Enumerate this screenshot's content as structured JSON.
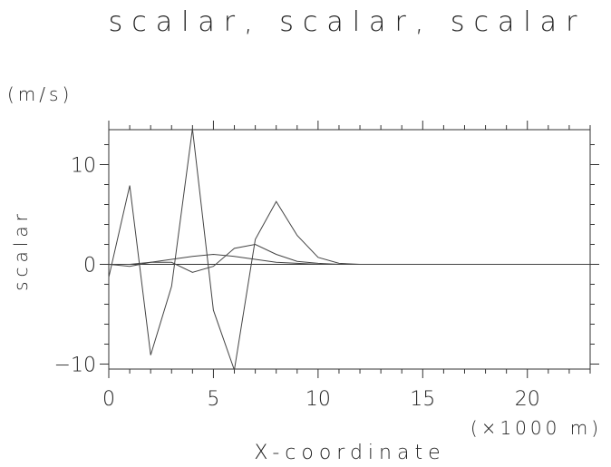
{
  "chart_data": {
    "type": "line",
    "title": "scalar, scalar, scalar",
    "xlabel": "X-coordinate",
    "xunit": "(×1000 m)",
    "ylabel": "scalar",
    "yunit": "(m/s)",
    "xlim": [
      0,
      23
    ],
    "ylim": [
      -10.5,
      13.5
    ],
    "x_ticks": [
      0,
      5,
      10,
      15,
      20
    ],
    "y_ticks": [
      -10,
      0,
      10
    ],
    "grid": false,
    "series": [
      {
        "x": [
          0,
          1,
          2,
          3,
          4,
          5,
          6,
          7,
          8,
          9,
          10,
          11,
          12,
          13,
          14,
          15,
          16,
          17,
          18,
          19,
          20,
          21,
          22,
          23
        ],
        "values": [
          -1.3,
          7.9,
          -9.1,
          -2.2,
          13.6,
          -4.6,
          -10.6,
          2.5,
          6.3,
          2.9,
          0.7,
          0.1,
          0,
          0,
          0,
          0,
          0,
          0,
          0,
          0,
          0,
          0,
          0,
          0
        ]
      },
      {
        "x": [
          0,
          1,
          2,
          3,
          4,
          5,
          6,
          7,
          8,
          9,
          10,
          11,
          12,
          13,
          14,
          15,
          16,
          17,
          18,
          19,
          20,
          21,
          22,
          23
        ],
        "values": [
          0,
          -0.2,
          0.2,
          0.2,
          -0.8,
          -0.2,
          1.6,
          2.0,
          1.0,
          0.3,
          0.1,
          0,
          0,
          0,
          0,
          0,
          0,
          0,
          0,
          0,
          0,
          0,
          0,
          0
        ]
      },
      {
        "x": [
          0,
          1,
          2,
          3,
          4,
          5,
          6,
          7,
          8,
          9,
          10,
          11,
          12,
          13,
          14,
          15,
          16,
          17,
          18,
          19,
          20,
          21,
          22,
          23
        ],
        "values": [
          0,
          0,
          0.2,
          0.5,
          0.8,
          1.0,
          0.8,
          0.5,
          0.2,
          0.1,
          0,
          0,
          0,
          0,
          0,
          0,
          0,
          0,
          0,
          0,
          0,
          0,
          0,
          0
        ]
      }
    ]
  }
}
